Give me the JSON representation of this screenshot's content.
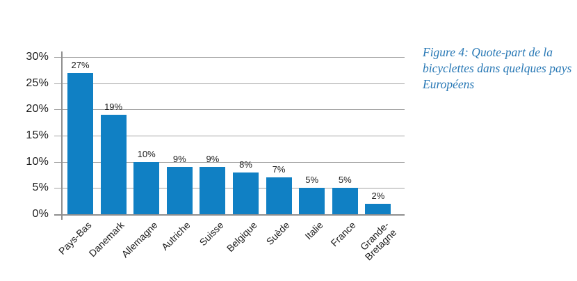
{
  "chart_data": {
    "type": "bar",
    "categories": [
      "Pays-Bas",
      "Danemark",
      "Allemagne",
      "Autriche",
      "Suisse",
      "Belgique",
      "Suède",
      "Italie",
      "France",
      "Grande-\nBretagne"
    ],
    "values": [
      27,
      19,
      10,
      9,
      9,
      8,
      7,
      5,
      5,
      2
    ],
    "bar_labels": [
      "27%",
      "19%",
      "10%",
      "9%",
      "9%",
      "8%",
      "7%",
      "5%",
      "5%",
      "2%"
    ],
    "title": "",
    "xlabel": "",
    "ylabel": "",
    "ylim": [
      0,
      30
    ],
    "ytick_interval": 5,
    "ytick_labels": [
      "0%",
      "5%",
      "10%",
      "15%",
      "20%",
      "25%",
      "30%"
    ],
    "grid": true,
    "legend": "none"
  },
  "caption": {
    "lines": [
      "Figure 4: Quote-part de la",
      "bicyclettes dans quelques pays",
      "Européens"
    ],
    "full_text": "Figure 4: Quote-part de la bicyclettes dans quelques pays Européens"
  },
  "colors": {
    "bar": "#1080c4",
    "grid": "#a3a3a3",
    "axis": "#8f8f8f",
    "label_text": "#1c1c1c",
    "caption_text": "#2878b5",
    "background": "#ffffff"
  }
}
